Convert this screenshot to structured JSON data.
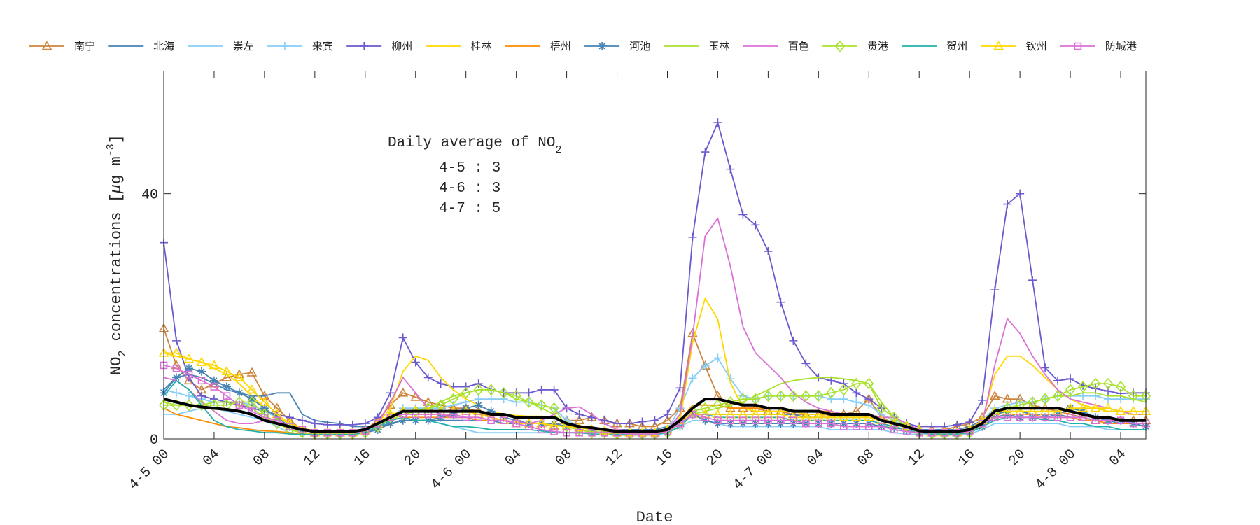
{
  "chart_data": {
    "type": "line",
    "xlabel": "Date",
    "ylabel": "NO2 concentrations [μg m-3]",
    "ylabel_parts": {
      "pre": "NO",
      "sub": "2",
      "mid": " concentrations [",
      "mu": "μ",
      "unit": "g m",
      "sup": "-3",
      "post": "]"
    },
    "ylim": [
      0,
      60
    ],
    "xlim_hours": [
      0,
      78
    ],
    "yticks": [
      0,
      40
    ],
    "xtick_hours": [
      0,
      4,
      8,
      12,
      16,
      20,
      24,
      28,
      32,
      36,
      40,
      44,
      48,
      52,
      56,
      60,
      64,
      68,
      72,
      76
    ],
    "xtick_labels": [
      "4-5 00",
      "04",
      "08",
      "12",
      "16",
      "20",
      "4-6 00",
      "04",
      "08",
      "12",
      "16",
      "20",
      "4-7 00",
      "04",
      "08",
      "12",
      "16",
      "20",
      "4-8 00",
      "04"
    ],
    "grid": false,
    "legend_position": "top (outside, horizontal)",
    "annotation": {
      "title_pre": "Daily average of NO",
      "title_sub": "2",
      "lines": [
        "4-5 : 3",
        "4-6 : 3",
        "4-7 : 5"
      ]
    },
    "series": [
      {
        "name": "南宁",
        "color": "#cd853f",
        "marker": "triangle",
        "values": [
          18,
          12,
          9.5,
          8,
          9,
          10,
          10.5,
          10.8,
          7,
          5,
          3,
          1.5,
          1,
          1,
          1,
          1,
          1.5,
          3,
          5.5,
          7.5,
          6.8,
          6,
          5.5,
          5,
          5,
          4.5,
          3.5,
          3,
          2.5,
          2.5,
          2.5,
          2,
          3,
          3,
          3.5,
          3,
          2.5,
          2.5,
          2,
          2,
          3,
          5,
          17.2,
          11.9,
          7,
          5,
          5,
          5,
          4.5,
          4.5,
          4,
          4,
          4,
          4,
          4,
          4.5,
          6.5,
          3.5,
          2.5,
          2,
          1.5,
          1.5,
          1.5,
          2,
          2.5,
          3.5,
          7,
          6.5,
          6.5,
          5.5,
          5,
          4.5,
          4,
          3.5,
          3,
          3,
          3,
          3,
          3
        ]
      },
      {
        "name": "北海",
        "color": "#4682b4",
        "marker": "none",
        "values": [
          8,
          10,
          10.5,
          10,
          9,
          8,
          7.5,
          7,
          7,
          7.5,
          7.5,
          4,
          3,
          2.7,
          2.5,
          2,
          2,
          2,
          2.5,
          3,
          3,
          3,
          3,
          3,
          3,
          3,
          3,
          2.5,
          2.5,
          2.5,
          2.5,
          2.5,
          2,
          2,
          1.8,
          1.5,
          1.5,
          1.5,
          1.5,
          1.5,
          2,
          3,
          4,
          4,
          4,
          4,
          4,
          4,
          4,
          4,
          4,
          3.5,
          3.5,
          3.5,
          3.5,
          3.5,
          3.5,
          3,
          2.5,
          2,
          1.5,
          1.5,
          1.5,
          1.5,
          2,
          3,
          4,
          4.5,
          4.5,
          4,
          4,
          4,
          3.5,
          3.5,
          3,
          3,
          2.5,
          2.5,
          2
        ]
      },
      {
        "name": "崇左",
        "color": "#87cefa",
        "marker": "none",
        "values": [
          4,
          4,
          4.5,
          5,
          5,
          4.5,
          4,
          3.5,
          3,
          2,
          1,
          0.8,
          0.7,
          0.7,
          0.7,
          0.7,
          1,
          1.5,
          2.5,
          3,
          3,
          3,
          2.5,
          2,
          1.5,
          1,
          1,
          1,
          1,
          1,
          1,
          1,
          1,
          1,
          0.8,
          0.7,
          0.6,
          0.6,
          0.6,
          0.6,
          1,
          2,
          3,
          3,
          2.5,
          2,
          2,
          2,
          2,
          2,
          2,
          2,
          2,
          1.5,
          1.5,
          1.5,
          1.5,
          1.5,
          1,
          0.8,
          0.7,
          0.6,
          0.6,
          0.6,
          0.8,
          1.5,
          2.5,
          2.5,
          2.5,
          2.5,
          2.5,
          2.5,
          2,
          2,
          2,
          1.5,
          1.5,
          1.5,
          1.5
        ]
      },
      {
        "name": "来宾",
        "color": "#87cefa",
        "marker": "plus",
        "values": [
          8,
          7.5,
          7,
          6.5,
          6,
          6,
          6,
          5.5,
          4.5,
          3.5,
          2.5,
          1.5,
          1,
          1,
          1,
          1,
          1.2,
          2,
          3.5,
          5,
          5,
          5,
          5,
          5.5,
          6,
          6.5,
          6.5,
          6.5,
          6,
          6,
          5.5,
          5,
          3,
          2,
          1.5,
          1.2,
          1,
          1,
          1,
          1,
          1.5,
          5,
          9.9,
          11.9,
          13.2,
          9.8,
          7,
          6.5,
          7,
          7,
          7,
          7,
          7,
          6.5,
          6.5,
          6,
          5.5,
          4,
          3,
          2,
          1.2,
          1,
          1,
          1,
          1.5,
          3,
          5,
          5.5,
          6,
          6,
          6.5,
          7,
          7,
          7,
          7,
          6.5,
          6.5,
          6.5,
          6.5
        ]
      },
      {
        "name": "柳州",
        "color": "#6a5acd",
        "marker": "plus",
        "values": [
          32,
          16,
          10,
          7,
          6.5,
          6,
          5.5,
          5,
          4.5,
          4,
          3.5,
          3,
          2.5,
          2.3,
          2.3,
          2.3,
          2.5,
          3.5,
          7.5,
          16.5,
          12.5,
          10,
          9,
          8.5,
          8.5,
          9,
          8,
          7.5,
          7.5,
          7.5,
          8,
          8,
          5,
          4,
          3.5,
          3,
          2.5,
          2.5,
          2.8,
          3,
          4,
          8.3,
          32.9,
          46.8,
          51.6,
          44,
          36.6,
          34.9,
          30.6,
          22.3,
          16,
          12.3,
          10,
          9.5,
          9,
          7.5,
          6.5,
          5,
          3.5,
          2.5,
          2,
          2,
          2,
          2.3,
          2.7,
          6.3,
          24.3,
          38.3,
          40,
          25.9,
          11.6,
          9.5,
          9.8,
          8.7,
          8.2,
          7.8,
          7.4,
          7.5,
          7.5
        ]
      },
      {
        "name": "桂林",
        "color": "#ffd700",
        "marker": "none",
        "values": [
          14,
          13.5,
          13,
          12.5,
          11.5,
          10.5,
          9,
          7,
          5,
          3.5,
          2.5,
          1.8,
          1.2,
          1,
          1,
          1,
          1.5,
          2.5,
          5,
          11,
          13.5,
          12.8,
          10,
          8,
          6.5,
          5.5,
          4.5,
          4,
          3.8,
          3.7,
          3.7,
          3.5,
          2.5,
          2,
          1.8,
          1.5,
          1.2,
          1,
          1,
          1,
          1.3,
          3,
          15.7,
          22.9,
          19.5,
          9.2,
          5,
          4.5,
          4.5,
          4.5,
          4.5,
          4,
          4,
          3.5,
          3.5,
          3.5,
          3.5,
          3,
          2.5,
          2,
          1.5,
          1,
          1,
          1.2,
          1.5,
          3,
          10.5,
          13.5,
          13.5,
          12,
          10,
          8,
          6.5,
          5.5,
          5,
          4.5,
          4.5,
          4,
          4
        ]
      },
      {
        "name": "梧州",
        "color": "#ff8c00",
        "marker": "none",
        "values": [
          5,
          4,
          3.5,
          3,
          2.5,
          2,
          1.8,
          1.5,
          1.3,
          1.2,
          1,
          0.8,
          0.8,
          0.8,
          0.8,
          0.8,
          1,
          2,
          3,
          3.5,
          3.5,
          3.5,
          3.5,
          3.5,
          3.5,
          3,
          3,
          3,
          2.5,
          2.5,
          2.5,
          2.5,
          2,
          1.5,
          1.2,
          1,
          1,
          1,
          1,
          1,
          1.5,
          3,
          5.5,
          5.5,
          5.5,
          5,
          5,
          5,
          5,
          5,
          4.5,
          4.5,
          4.5,
          4.5,
          4,
          4,
          3.5,
          3,
          2.5,
          2,
          1.5,
          1,
          1,
          1,
          1.5,
          2.5,
          3.5,
          4,
          4,
          4,
          3.5,
          3.5,
          3.5,
          3,
          3,
          2.5,
          2.5,
          2.5,
          2.5
        ]
      },
      {
        "name": "河池",
        "color": "#4682b4",
        "marker": "asterisk",
        "values": [
          7.5,
          10,
          11.5,
          11,
          9.5,
          8.5,
          7.5,
          6.5,
          5,
          3.5,
          2,
          1,
          0.8,
          0.8,
          0.8,
          0.8,
          1,
          1.5,
          2.5,
          3,
          3,
          3,
          3.5,
          4,
          5,
          5.5,
          4.5,
          3.5,
          3,
          2.5,
          2.5,
          2.5,
          2,
          1.5,
          1.2,
          1,
          0.8,
          0.8,
          0.8,
          0.8,
          1,
          2,
          4,
          3,
          2.5,
          2.5,
          2.5,
          2.5,
          2.5,
          2.5,
          2.5,
          2.5,
          2.5,
          2.5,
          2.5,
          2.5,
          2.5,
          2,
          1.8,
          1.5,
          1,
          0.8,
          0.8,
          0.8,
          1,
          2,
          3.5,
          4,
          3.5,
          3.5,
          3.5,
          4,
          5,
          4.5,
          3.5,
          3,
          3,
          2.5,
          2
        ]
      },
      {
        "name": "玉林",
        "color": "#a8e22c",
        "marker": "none",
        "values": [
          6,
          5.5,
          5.5,
          5.5,
          6,
          6,
          6,
          5,
          3.5,
          2.5,
          1.5,
          1,
          0.8,
          0.8,
          0.8,
          0.8,
          1,
          2,
          3,
          4,
          4.5,
          5,
          6,
          7,
          7.5,
          8,
          8,
          7.5,
          6.5,
          6,
          5,
          4,
          2,
          1.5,
          1.2,
          1,
          1,
          1,
          1,
          1,
          1.5,
          3,
          4,
          4.5,
          5,
          5.5,
          6,
          7,
          8,
          9,
          9.5,
          9.8,
          10,
          10,
          9.8,
          9.5,
          9,
          6,
          3.5,
          2,
          1,
          0.8,
          0.8,
          0.8,
          1,
          2.5,
          4,
          5,
          5.5,
          6,
          6.5,
          7,
          7,
          7.5,
          7.5,
          7,
          7,
          6.5,
          6
        ]
      },
      {
        "name": "百色",
        "color": "#da70d6",
        "marker": "none",
        "values": [
          10,
          9.5,
          8,
          6,
          4.5,
          3,
          2.5,
          2.5,
          3,
          3,
          2,
          1.5,
          1.2,
          1,
          1,
          1,
          1.3,
          2.5,
          6,
          10,
          7.5,
          5,
          4,
          3.5,
          3.5,
          3.5,
          3,
          3,
          2.8,
          2.5,
          3,
          4,
          5,
          5.2,
          4,
          2.5,
          1.5,
          1.3,
          1.2,
          1.2,
          1.5,
          4,
          16.8,
          33.1,
          36,
          28.2,
          18.3,
          14,
          12,
          10,
          7.5,
          6,
          5,
          4.5,
          4,
          4,
          4,
          3.5,
          3.5,
          2.5,
          1.5,
          1.2,
          1.2,
          1.3,
          1.5,
          2.5,
          12,
          19.6,
          17.2,
          13.5,
          10.5,
          8,
          6.5,
          6,
          5.5,
          5,
          4.5,
          4,
          4
        ]
      },
      {
        "name": "贵港",
        "color": "#a8e22c",
        "marker": "diamond",
        "values": [
          5.5,
          5.5,
          5.5,
          5.5,
          5.5,
          5.5,
          6,
          6,
          4,
          2.5,
          1.5,
          1,
          0.8,
          0.8,
          0.8,
          0.8,
          1,
          2,
          3.5,
          4,
          4.5,
          5,
          5.5,
          6.5,
          7.5,
          8,
          8,
          7.5,
          7,
          6,
          5.5,
          5,
          2,
          1.5,
          1,
          1,
          0.8,
          0.8,
          0.8,
          0.8,
          1,
          2.5,
          4.5,
          5,
          5.5,
          6,
          6.5,
          6.5,
          7,
          7,
          7,
          7,
          7,
          7.5,
          8,
          9,
          9,
          5,
          3.5,
          2,
          1,
          0.8,
          0.8,
          0.8,
          1,
          2.5,
          4,
          5,
          5.5,
          6,
          6.5,
          7,
          8,
          8.5,
          9,
          9,
          8.5,
          7,
          7
        ]
      },
      {
        "name": "贺州",
        "color": "#20b2aa",
        "marker": "none",
        "values": [
          7,
          9.5,
          8,
          5.5,
          3,
          2,
          1.5,
          1.3,
          1,
          1,
          0.8,
          0.7,
          0.7,
          0.7,
          0.7,
          0.7,
          1,
          2,
          3,
          3.5,
          3,
          3,
          2.5,
          2,
          2,
          1.8,
          1.5,
          1.5,
          1.5,
          1.5,
          1.3,
          1,
          1,
          1,
          0.8,
          0.7,
          0.7,
          0.7,
          0.7,
          0.7,
          1,
          2,
          4,
          4,
          3.5,
          3.5,
          3.5,
          3.5,
          3.5,
          3.5,
          3,
          3,
          3,
          3,
          3,
          3,
          3,
          2.5,
          2,
          1.5,
          1,
          0.8,
          0.8,
          0.8,
          1,
          2,
          3,
          3.5,
          3.5,
          3.5,
          3,
          3,
          2.5,
          2.5,
          2,
          2,
          1.5,
          1.5,
          1.5
        ]
      },
      {
        "name": "钦州",
        "color": "#ffd700",
        "marker": "triangle",
        "values": [
          14,
          14,
          13,
          12.5,
          12,
          11,
          10,
          8,
          6,
          4,
          2.5,
          1.5,
          1,
          1,
          1,
          1,
          1.3,
          2.5,
          4,
          4.5,
          4.5,
          4.5,
          4.5,
          4.5,
          4.5,
          4,
          3.5,
          3,
          2.5,
          2.5,
          2.5,
          2.2,
          2,
          1.8,
          1.5,
          1.3,
          1,
          1,
          1,
          1,
          1.5,
          3,
          4,
          4,
          4,
          4,
          4,
          4,
          4,
          4,
          3.5,
          3.5,
          3.5,
          3.5,
          3.5,
          3.5,
          3.5,
          3,
          2.5,
          2,
          1.5,
          1,
          1,
          1,
          1.5,
          3,
          4.5,
          4.5,
          4.5,
          4.5,
          4.5,
          4.5,
          5,
          5,
          5,
          5,
          4.5,
          4.5,
          4.5
        ]
      },
      {
        "name": "防城港",
        "color": "#da70d6",
        "marker": "square",
        "values": [
          12,
          11.5,
          10.5,
          9.5,
          8.5,
          7,
          5.5,
          4.5,
          3.5,
          3,
          2,
          1.5,
          1,
          1,
          1,
          1,
          1.3,
          2.5,
          3.5,
          4,
          4,
          4,
          4,
          4,
          3.5,
          3.5,
          3,
          3,
          2.5,
          2,
          1.5,
          1.2,
          1,
          1,
          1,
          1,
          1,
          0.8,
          0.8,
          0.8,
          1.2,
          2.5,
          4,
          3.5,
          3,
          3,
          3,
          3,
          3,
          3,
          3,
          2.5,
          2.5,
          2.5,
          2,
          2,
          2,
          2,
          1.5,
          1.2,
          1,
          1,
          1,
          1,
          1.2,
          2.5,
          3.5,
          3.5,
          3.5,
          3.5,
          3.5,
          3.5,
          3.5,
          3.5,
          3,
          3,
          3,
          2.5,
          2.5
        ]
      }
    ],
    "average_line": {
      "color": "#000000",
      "values": [
        6.5,
        6,
        5.5,
        5.2,
        5,
        4.8,
        4.5,
        4,
        3,
        2.5,
        2,
        1.5,
        1.2,
        1.2,
        1.2,
        1.2,
        1.5,
        2.5,
        3.5,
        4.5,
        4.5,
        4.5,
        4.5,
        4.5,
        4.5,
        4.5,
        4,
        4,
        3.5,
        3.5,
        3.5,
        3.5,
        2.5,
        2,
        1.8,
        1.5,
        1.2,
        1.2,
        1.2,
        1.2,
        1.5,
        3,
        5,
        6.5,
        6.5,
        6,
        5.5,
        5.5,
        5,
        5,
        4.5,
        4.5,
        4.5,
        4,
        4,
        4,
        4,
        3,
        2.5,
        2,
        1.3,
        1.2,
        1.2,
        1.2,
        1.5,
        2.5,
        4.5,
        5,
        5,
        5,
        5,
        5,
        4.5,
        4,
        3.5,
        3.5,
        3,
        3,
        3
      ]
    }
  }
}
